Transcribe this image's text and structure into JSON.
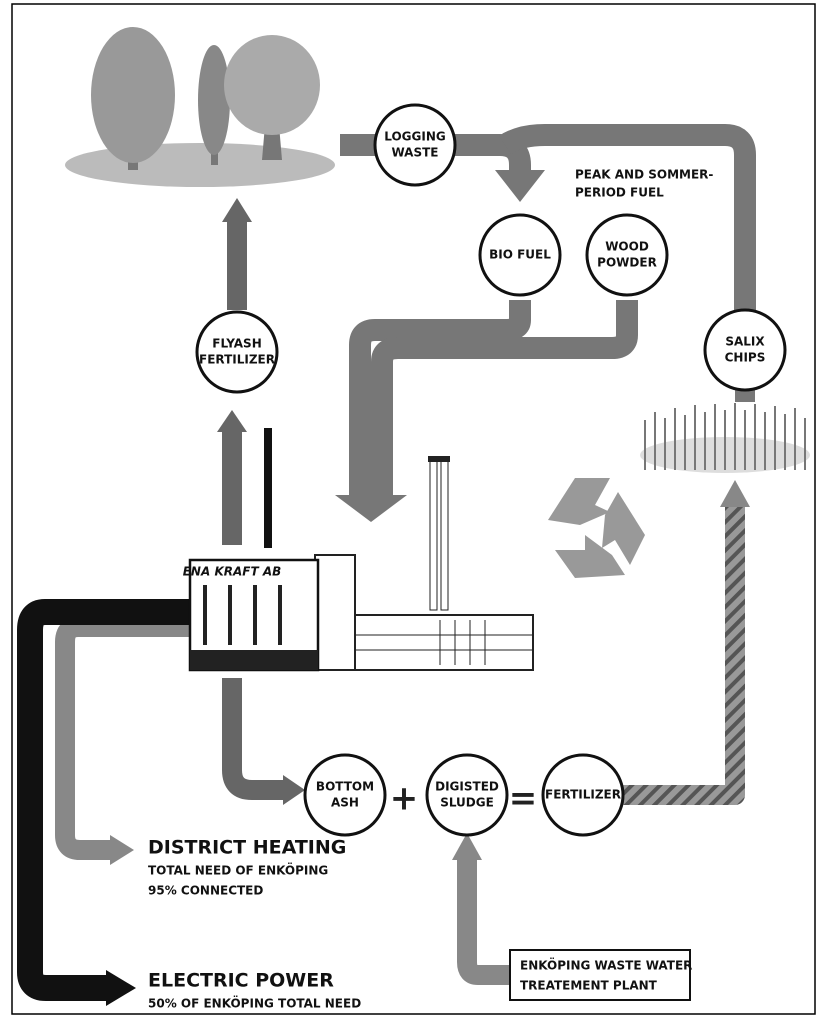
{
  "nodes": [
    {
      "lines": [
        "LOGGING",
        "WASTE"
      ]
    },
    {
      "lines": [
        "BIO FUEL"
      ]
    },
    {
      "lines": [
        "WOOD",
        "POWDER"
      ]
    },
    {
      "lines": [
        "SALIX",
        "CHIPS"
      ]
    },
    {
      "lines": [
        "FLYASH",
        "FERTILIZER"
      ]
    },
    {
      "lines": [
        "BOTTOM",
        "ASH"
      ]
    },
    {
      "lines": [
        "DIGISTED",
        "SLUDGE"
      ]
    },
    {
      "lines": [
        "FERTILIZER"
      ]
    }
  ],
  "operators": [
    "+",
    "="
  ],
  "peak_note": [
    "PEAK AND SOMMER-",
    "PERIOD FUEL"
  ],
  "building_label": "ENA KRAFT AB",
  "district_heating": {
    "title": "DISTRICT HEATING",
    "lines": [
      "TOTAL NEED OF ENKÖPING",
      "95% CONNECTED"
    ]
  },
  "electric_power": {
    "title": "ELECTRIC POWER",
    "lines": [
      "50% OF ENKÖPING TOTAL NEED"
    ]
  },
  "waste_water_plant": [
    "ENKÖPING WASTE WATER",
    "TREATEMENT PLANT"
  ]
}
